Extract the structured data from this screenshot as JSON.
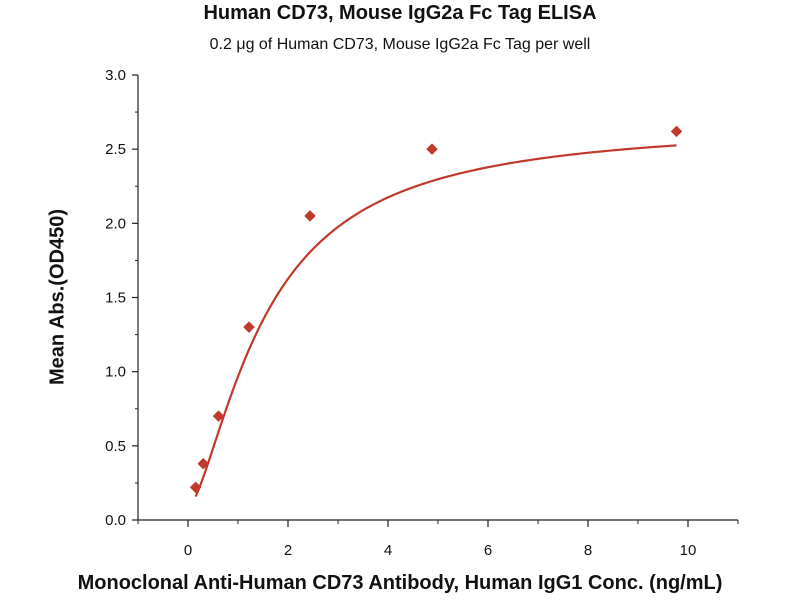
{
  "chart_data": {
    "type": "scatter",
    "title": "Human CD73, Mouse IgG2a Fc Tag ELISA",
    "subtitle": "0.2 μg of Human CD73, Mouse IgG2a Fc Tag per well",
    "xlabel": "Monoclonal Anti-Human CD73 Antibody, Human IgG1 Conc. (ng/mL)",
    "ylabel": "Mean Abs.(OD450)",
    "xlim": [
      -1,
      11
    ],
    "ylim": [
      0,
      3.0
    ],
    "x_ticks": [
      0,
      2,
      4,
      6,
      8,
      10
    ],
    "x_tick_labels": [
      "0",
      "2",
      "4",
      "6",
      "8",
      "10"
    ],
    "y_ticks": [
      0,
      0.5,
      1.0,
      1.5,
      2.0,
      2.5,
      3.0
    ],
    "y_tick_labels": [
      "0.0",
      "0.5",
      "1.0",
      "1.5",
      "2.0",
      "2.5",
      "3.0"
    ],
    "grid": false,
    "color": "#c0392b",
    "marker": "diamond",
    "series": [
      {
        "x": [
          0.153,
          0.305,
          0.61,
          1.22,
          2.44,
          4.88,
          9.77
        ],
        "y": [
          0.22,
          0.38,
          0.7,
          1.3,
          2.05,
          2.5,
          2.62
        ],
        "fit": "sigmoid"
      }
    ]
  }
}
